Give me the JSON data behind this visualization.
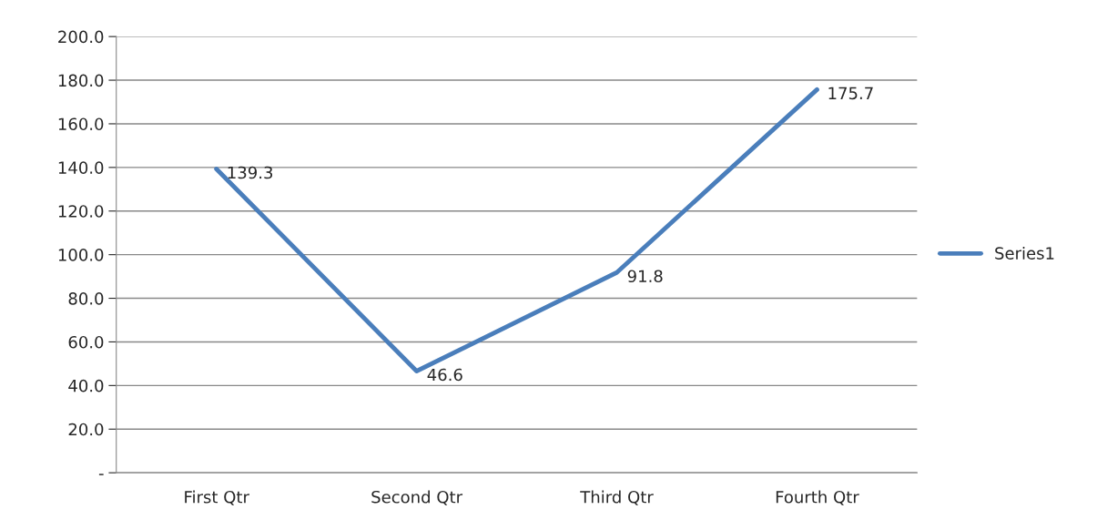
{
  "chart_data": {
    "type": "line",
    "categories": [
      "First Qtr",
      "Second Qtr",
      "Third Qtr",
      "Fourth Qtr"
    ],
    "series": [
      {
        "name": "Series1",
        "color": "#4a7ebb",
        "values": [
          139.3,
          46.6,
          91.8,
          175.7
        ]
      }
    ],
    "ylim": [
      0,
      200
    ],
    "yticks": [
      {
        "value": 0,
        "label": "-"
      },
      {
        "value": 20,
        "label": "20.0"
      },
      {
        "value": 40,
        "label": "40.0"
      },
      {
        "value": 60,
        "label": "60.0"
      },
      {
        "value": 80,
        "label": "80.0"
      },
      {
        "value": 100,
        "label": "100.0"
      },
      {
        "value": 120,
        "label": "120.0"
      },
      {
        "value": 140,
        "label": "140.0"
      },
      {
        "value": 160,
        "label": "160.0"
      },
      {
        "value": 180,
        "label": "180.0"
      },
      {
        "value": 200,
        "label": "200.0"
      }
    ],
    "grid": "y",
    "legend": "right",
    "data_labels": true,
    "marker": "none",
    "line_style": "solid"
  }
}
